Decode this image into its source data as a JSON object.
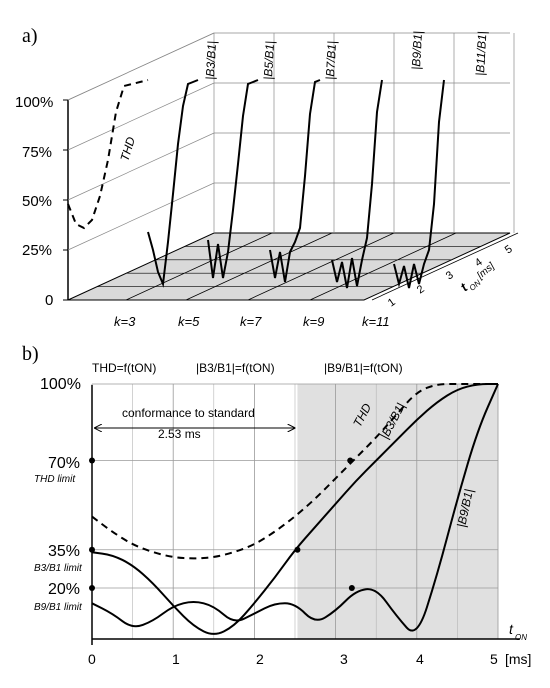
{
  "panel_a": {
    "label": "a)",
    "y_ticks": [
      "100%",
      "75%",
      "50%",
      "25%",
      "0"
    ],
    "k_labels": [
      "k=3",
      "k=5",
      "k=7",
      "k=9",
      "k=11"
    ],
    "t_ticks": [
      "1",
      "2",
      "3",
      "4",
      "5"
    ],
    "t_axis_label": "t",
    "t_axis_sub": "ON",
    "t_axis_unit": "[ms]",
    "curve_labels": [
      "THD",
      "|B3/B1|",
      "|B5/B1|",
      "|B7/B1|",
      "|B9/B1|",
      "|B11/B1|"
    ]
  },
  "panel_b": {
    "label": "b)",
    "legend": [
      "THD=f(tON)",
      "|B3/B1|=f(tON)",
      "|B9/B1|=f(tON)"
    ],
    "annotation": "conformance to standard",
    "annotation_value": "2.53 ms",
    "limit_labels": [
      "THD limit",
      "B3/B1 limit",
      "B9/B1 limit"
    ],
    "curve_labels": [
      "THD",
      "|B3/B1|",
      "|B9/B1|"
    ],
    "x_label": "t",
    "x_label_sub": "ON",
    "x_unit": "[ms]"
  },
  "chart_data": [
    {
      "type": "line",
      "panel": "a",
      "x": [
        0,
        0.5,
        1,
        1.5,
        2,
        2.5,
        3,
        3.5,
        4,
        4.5,
        5
      ],
      "series": [
        {
          "name": "THD",
          "values": [
            48,
            37,
            34,
            37,
            48,
            65,
            88,
            100,
            100,
            100,
            100
          ]
        },
        {
          "name": "|B3/B1|",
          "values": [
            34,
            24,
            12,
            5,
            25,
            48,
            72,
            90,
            100,
            100,
            100
          ]
        },
        {
          "name": "|B5/B1|",
          "values": [
            30,
            10,
            26,
            8,
            20,
            40,
            62,
            85,
            100,
            100,
            100
          ]
        },
        {
          "name": "|B7/B1|",
          "values": [
            25,
            10,
            22,
            6,
            20,
            24,
            30,
            55,
            85,
            100,
            100
          ]
        },
        {
          "name": "|B9/B1|",
          "values": [
            20,
            8,
            17,
            3,
            17,
            2,
            14,
            24,
            50,
            85,
            100
          ]
        },
        {
          "name": "|B11/B1|",
          "values": [
            18,
            7,
            15,
            3,
            14,
            3,
            12,
            18,
            40,
            80,
            100
          ]
        }
      ],
      "ylim": [
        0,
        100
      ],
      "y_ticks": [
        "100%",
        "75%",
        "50%",
        "25%",
        "0"
      ],
      "categories": [
        "k=3",
        "k=5",
        "k=7",
        "k=9",
        "k=11"
      ]
    },
    {
      "type": "line",
      "panel": "b",
      "x": [
        0,
        0.25,
        0.5,
        0.75,
        1,
        1.25,
        1.5,
        1.75,
        2,
        2.25,
        2.5,
        2.75,
        3,
        3.25,
        3.5,
        3.75,
        4,
        4.25,
        4.5,
        4.75,
        5
      ],
      "series": [
        {
          "name": "THD",
          "values": [
            48,
            42,
            37,
            34,
            32,
            31.5,
            32,
            34,
            37,
            42,
            48,
            55,
            63,
            71,
            79,
            88,
            97,
            100,
            100,
            100,
            100
          ]
        },
        {
          "name": "|B3/B1|",
          "values": [
            34,
            33,
            29,
            22,
            13,
            5,
            1,
            5,
            14,
            24,
            35,
            44,
            53,
            62,
            70,
            78,
            86,
            93,
            98,
            100,
            100
          ]
        },
        {
          "name": "|B9/B1|",
          "values": [
            14,
            10,
            4,
            7,
            13,
            15,
            13,
            6,
            10,
            14,
            14,
            6,
            11,
            19,
            20,
            9,
            0,
            25,
            55,
            82,
            100
          ]
        }
      ],
      "xlim": [
        0,
        5
      ],
      "ylim": [
        0,
        100
      ],
      "x_ticks": [
        "0",
        "1",
        "2",
        "3",
        "4",
        "5"
      ],
      "y_ticks": [
        "100%",
        "70%",
        "35%",
        "20%"
      ],
      "limits": {
        "THD": 70,
        "B3/B1": 35,
        "B9/B1": 20
      },
      "conformance_ms": 2.53
    }
  ]
}
